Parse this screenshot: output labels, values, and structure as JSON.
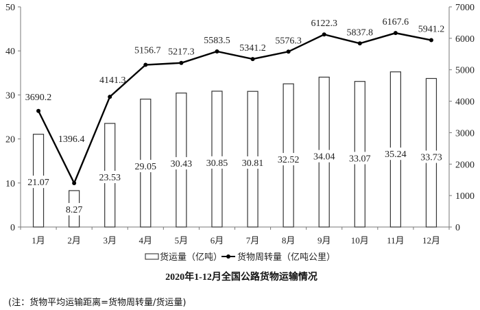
{
  "chart_data": {
    "type": "bar+line",
    "title": "2020年1-12月全国公路货物运输情况",
    "categories": [
      "1月",
      "2月",
      "3月",
      "4月",
      "5月",
      "6月",
      "7月",
      "8月",
      "9月",
      "10月",
      "11月",
      "12月"
    ],
    "series": [
      {
        "name": "货运量（亿吨）",
        "type": "bar",
        "axis": "left",
        "values": [
          21.07,
          8.27,
          23.53,
          29.05,
          30.43,
          30.85,
          30.81,
          32.52,
          34.04,
          33.07,
          35.24,
          33.73
        ]
      },
      {
        "name": "货物周转量（亿吨公里）",
        "type": "line",
        "axis": "right",
        "values": [
          3690.2,
          1396.4,
          4141.3,
          5156.7,
          5217.3,
          5583.5,
          5341.2,
          5576.3,
          6122.3,
          5837.8,
          6167.6,
          5941.2
        ]
      }
    ],
    "left_axis": {
      "ylim": [
        0,
        50
      ],
      "ticks": [
        0,
        10,
        20,
        30,
        40,
        50
      ]
    },
    "right_axis": {
      "ylim": [
        0,
        7000
      ],
      "ticks": [
        0,
        1000,
        2000,
        3000,
        4000,
        5000,
        6000,
        7000
      ]
    },
    "legend_position": "bottom",
    "grid": false
  },
  "note": "(注：货物平均运输距离=货物周转量/货运量)"
}
